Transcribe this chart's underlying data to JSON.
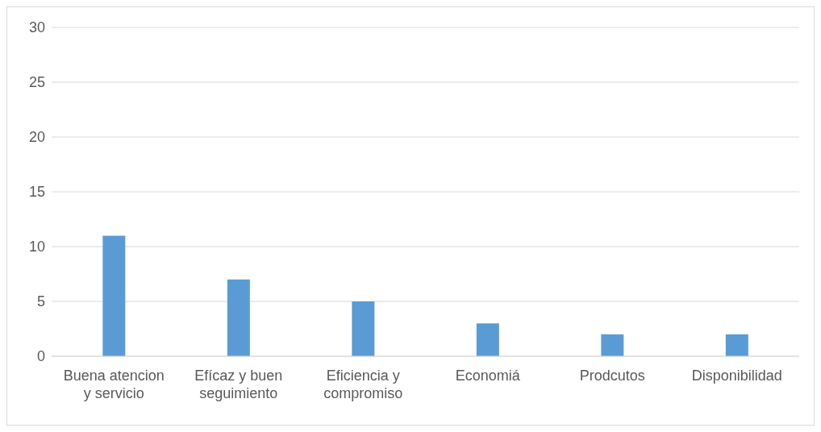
{
  "chart_data": {
    "type": "bar",
    "categories": [
      "Buena atencion y servicio",
      "Efícaz y buen seguimiento",
      "Eficiencia y compromiso",
      "Economiá",
      "Prodcutos",
      "Disponibilidad"
    ],
    "values": [
      11,
      7,
      5,
      3,
      2,
      2
    ],
    "color": "#5b9bd5",
    "ylim": [
      0,
      30
    ],
    "yticks": [
      0,
      5,
      10,
      15,
      20,
      25,
      30
    ],
    "grid": "y",
    "legend": false
  }
}
